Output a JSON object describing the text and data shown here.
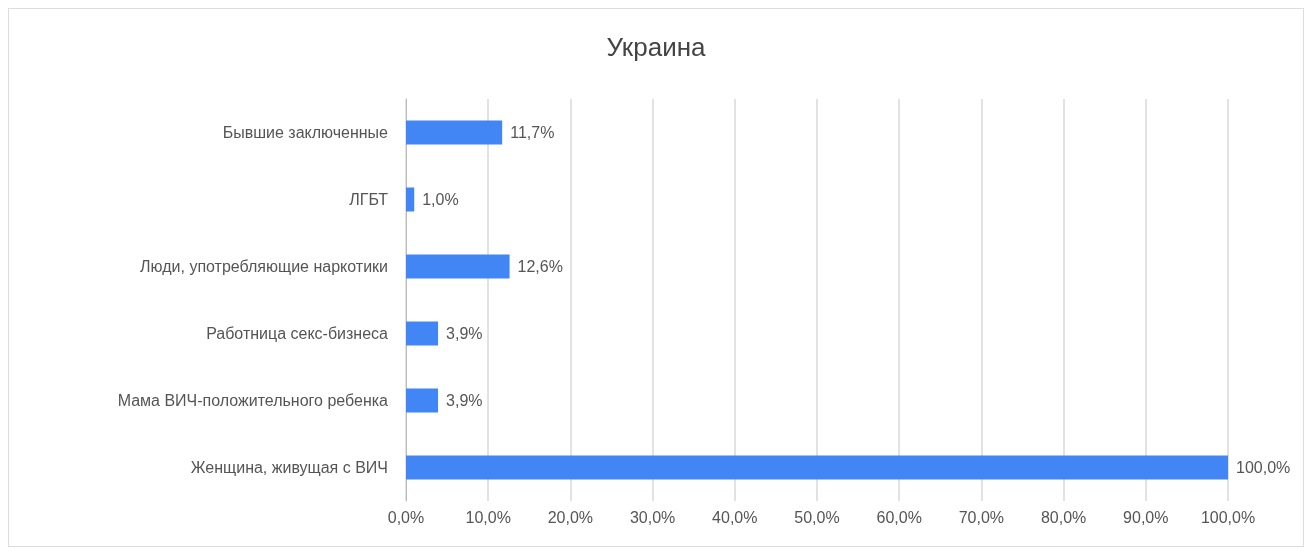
{
  "chart_data": {
    "type": "bar",
    "orientation": "horizontal",
    "title": "Украина",
    "categories": [
      "Бывшие заключенные",
      "ЛГБТ",
      "Люди, употребляющие наркотики",
      "Работница секс-бизнеса",
      "Мама ВИЧ-положительного ребенка",
      "Женщина, живущая с ВИЧ"
    ],
    "values": [
      11.7,
      1.0,
      12.6,
      3.9,
      3.9,
      100
    ],
    "value_labels": [
      "11,7%",
      "1,0%",
      "12,6%",
      "3,9%",
      "3,9%",
      "100,0%"
    ],
    "color": "#4285f4",
    "xlim": [
      0,
      100
    ],
    "xticks": [
      {
        "value": 0,
        "label": "0,0%"
      },
      {
        "value": 10,
        "label": "10,0%"
      },
      {
        "value": 20,
        "label": "20,0%"
      },
      {
        "value": 30,
        "label": "30,0%"
      },
      {
        "value": 40,
        "label": "40,0%"
      },
      {
        "value": 50,
        "label": "50,0%"
      },
      {
        "value": 60,
        "label": "60,0%"
      },
      {
        "value": 70,
        "label": "70,0%"
      },
      {
        "value": 80,
        "label": "80,0%"
      },
      {
        "value": 90,
        "label": "90,0%"
      },
      {
        "value": 100,
        "label": "100,0%"
      }
    ],
    "grid": "x"
  }
}
